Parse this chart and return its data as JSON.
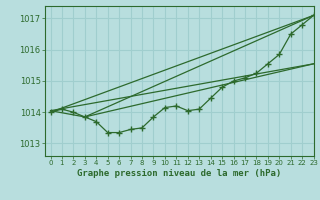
{
  "background_color": "#b8dede",
  "grid_color": "#a0cece",
  "line_color": "#2d6a2d",
  "title": "Graphe pression niveau de la mer (hPa)",
  "xlim": [
    -0.5,
    23
  ],
  "ylim": [
    1012.6,
    1017.4
  ],
  "yticks": [
    1013,
    1014,
    1015,
    1016,
    1017
  ],
  "xticks": [
    0,
    1,
    2,
    3,
    4,
    5,
    6,
    7,
    8,
    9,
    10,
    11,
    12,
    13,
    14,
    15,
    16,
    17,
    18,
    19,
    20,
    21,
    22,
    23
  ],
  "series1_x": [
    0,
    1,
    2,
    3,
    4,
    5,
    6,
    7,
    8,
    9,
    10,
    11,
    12,
    13,
    14,
    15,
    16,
    17,
    18,
    19,
    20,
    21,
    22,
    23
  ],
  "series1_y": [
    1014.0,
    1014.1,
    1014.0,
    1013.85,
    1013.7,
    1013.35,
    1013.35,
    1013.45,
    1013.5,
    1013.85,
    1014.15,
    1014.2,
    1014.05,
    1014.1,
    1014.45,
    1014.8,
    1015.0,
    1015.1,
    1015.25,
    1015.55,
    1015.85,
    1016.5,
    1016.8,
    1017.1
  ],
  "line1_x": [
    0,
    23
  ],
  "line1_y": [
    1014.0,
    1017.1
  ],
  "line2_x": [
    0,
    3,
    23
  ],
  "line2_y": [
    1014.05,
    1013.85,
    1017.1
  ],
  "line3_x": [
    0,
    23
  ],
  "line3_y": [
    1014.05,
    1015.55
  ],
  "line4_x": [
    3,
    23
  ],
  "line4_y": [
    1013.85,
    1015.55
  ]
}
